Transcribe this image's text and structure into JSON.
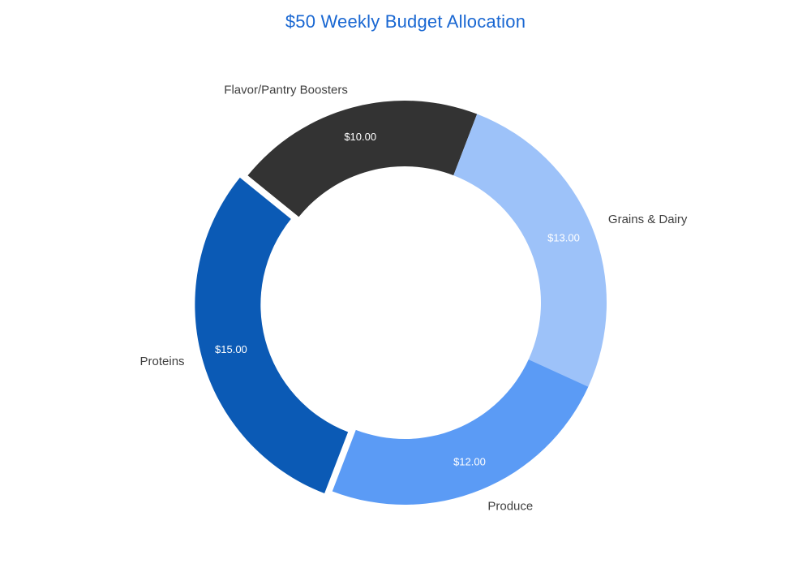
{
  "chart_data": {
    "type": "pie",
    "title": "$50 Weekly Budget Allocation",
    "title_color": "#1967d2",
    "total": 50,
    "donut_hole_ratio": 0.675,
    "start_angle_deg": -51,
    "legend_position": "labeled-outside",
    "label_color": "#404040",
    "value_label_color": "#ffffff",
    "background_color": "#ffffff",
    "slices": [
      {
        "label": "Flavor/Pantry Boosters",
        "value": 10,
        "value_label": "$10.00",
        "color": "#333333",
        "offset": 0
      },
      {
        "label": "Grains & Dairy",
        "value": 13,
        "value_label": "$13.00",
        "color": "#9dc2f9",
        "offset": 0
      },
      {
        "label": "Produce",
        "value": 12,
        "value_label": "$12.00",
        "color": "#5b9bf5",
        "offset": 0
      },
      {
        "label": "Proteins",
        "value": 15,
        "value_label": "$15.00",
        "color": "#0b5ab5",
        "offset": 10
      }
    ]
  }
}
